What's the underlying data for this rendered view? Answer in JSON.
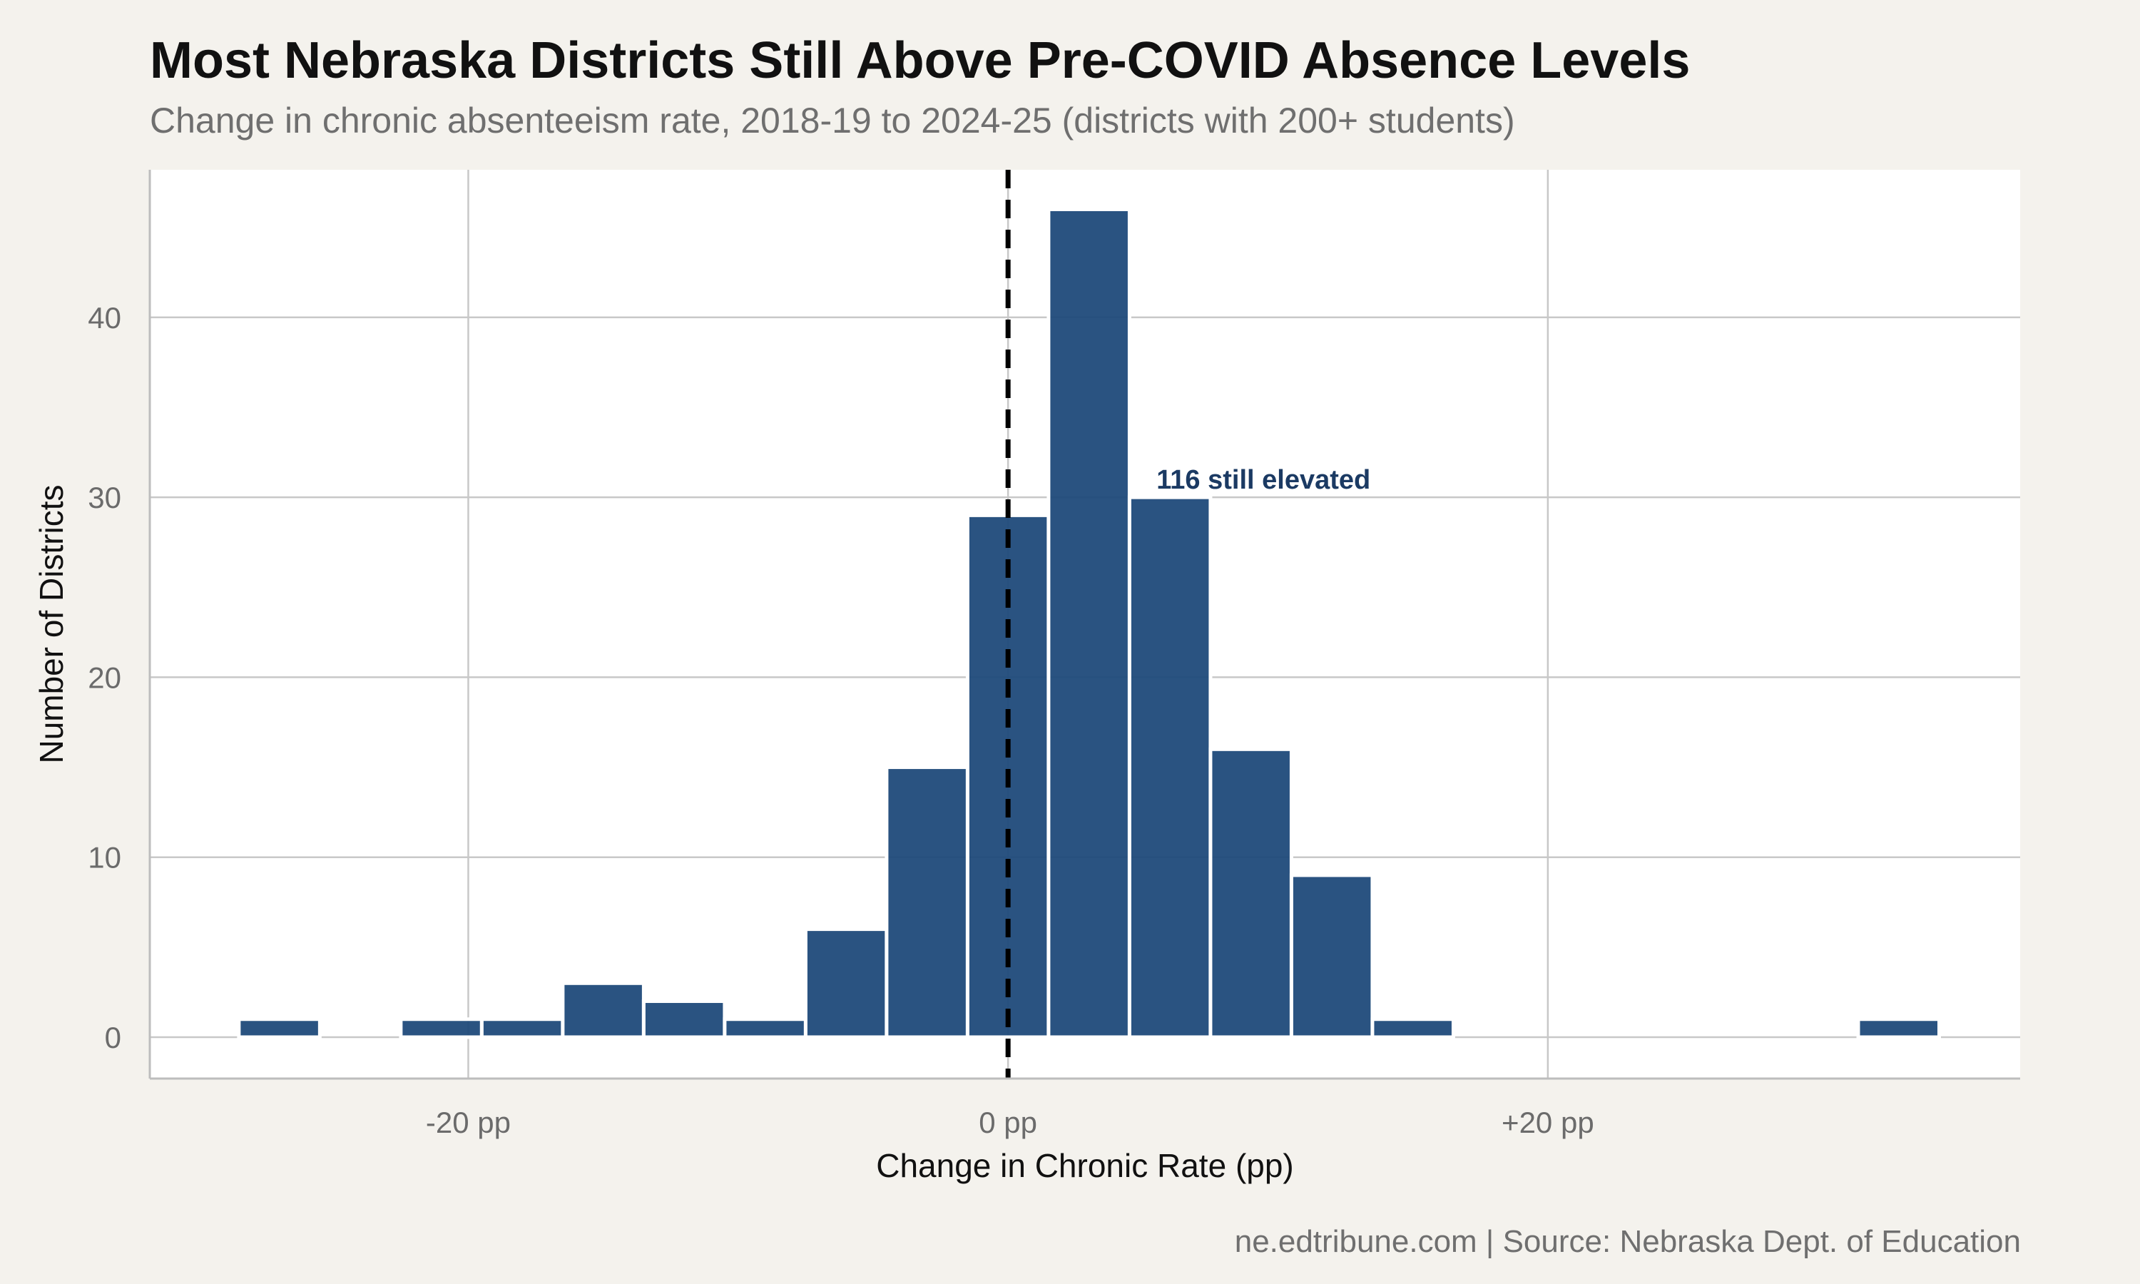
{
  "chart_data": {
    "type": "bar",
    "title": "Most Nebraska Districts Still Above Pre-COVID Absence Levels",
    "subtitle": "Change in chronic absenteeism rate, 2018-19 to 2024-25 (districts with 200+ students)",
    "caption": "ne.edtribune.com | Source: Nebraska Dept. of Education",
    "xlabel": "Change in Chronic Rate (pp)",
    "ylabel": "Number of Districts",
    "xlim": [
      -31.8,
      37.5
    ],
    "ylim": [
      -2.3,
      48.2
    ],
    "x_ticks": [
      {
        "value": -20,
        "label": "-20 pp"
      },
      {
        "value": 0,
        "label": "0 pp"
      },
      {
        "value": 20,
        "label": "+20 pp"
      }
    ],
    "y_ticks": [
      {
        "value": 0,
        "label": "0"
      },
      {
        "value": 10,
        "label": "10"
      },
      {
        "value": 20,
        "label": "20"
      },
      {
        "value": 30,
        "label": "30"
      },
      {
        "value": 40,
        "label": "40"
      }
    ],
    "bin_width": 3,
    "bins": [
      {
        "center": -27,
        "count": 1
      },
      {
        "center": -24,
        "count": 0
      },
      {
        "center": -21,
        "count": 1
      },
      {
        "center": -18,
        "count": 1
      },
      {
        "center": -15,
        "count": 3
      },
      {
        "center": -12,
        "count": 2
      },
      {
        "center": -9,
        "count": 1
      },
      {
        "center": -6,
        "count": 6
      },
      {
        "center": -3,
        "count": 15
      },
      {
        "center": 0,
        "count": 29
      },
      {
        "center": 3,
        "count": 46
      },
      {
        "center": 6,
        "count": 30
      },
      {
        "center": 9,
        "count": 16
      },
      {
        "center": 12,
        "count": 9
      },
      {
        "center": 15,
        "count": 1
      },
      {
        "center": 18,
        "count": 0
      },
      {
        "center": 21,
        "count": 0
      },
      {
        "center": 24,
        "count": 0
      },
      {
        "center": 27,
        "count": 0
      },
      {
        "center": 30,
        "count": 0
      },
      {
        "center": 33,
        "count": 1
      }
    ],
    "reference_line": {
      "x": 0,
      "style": "dashed",
      "color": "#000000"
    },
    "annotation": {
      "text": "116 still elevated",
      "x": 5.5,
      "y": 30,
      "color": "#1b3a63"
    },
    "grid": true,
    "legend": "none",
    "bar_color": "#1f4a7a",
    "bar_opacity": 0.95
  }
}
